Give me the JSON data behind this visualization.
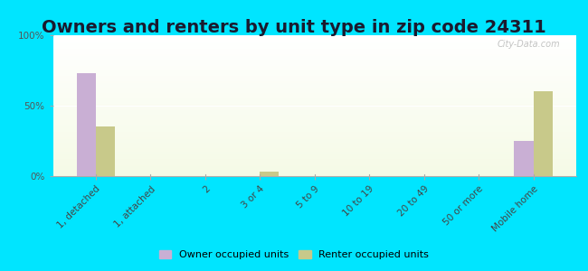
{
  "title": "Owners and renters by unit type in zip code 24311",
  "categories": [
    "1, detached",
    "1, attached",
    "2",
    "3 or 4",
    "5 to 9",
    "10 to 19",
    "20 to 49",
    "50 or more",
    "Mobile home"
  ],
  "owner_values": [
    73,
    0,
    0,
    0,
    0,
    0,
    0,
    0,
    25
  ],
  "renter_values": [
    35,
    0,
    0,
    3,
    0,
    0,
    0,
    0,
    60
  ],
  "owner_color": "#c9afd4",
  "renter_color": "#c8c98a",
  "ylim": [
    0,
    100
  ],
  "yticks": [
    0,
    50,
    100
  ],
  "ytick_labels": [
    "0%",
    "50%",
    "100%"
  ],
  "outer_background": "#00e5ff",
  "bar_width": 0.35,
  "legend_owner": "Owner occupied units",
  "legend_renter": "Renter occupied units",
  "watermark": "City-Data.com",
  "title_fontsize": 14,
  "axis_label_fontsize": 7.5
}
